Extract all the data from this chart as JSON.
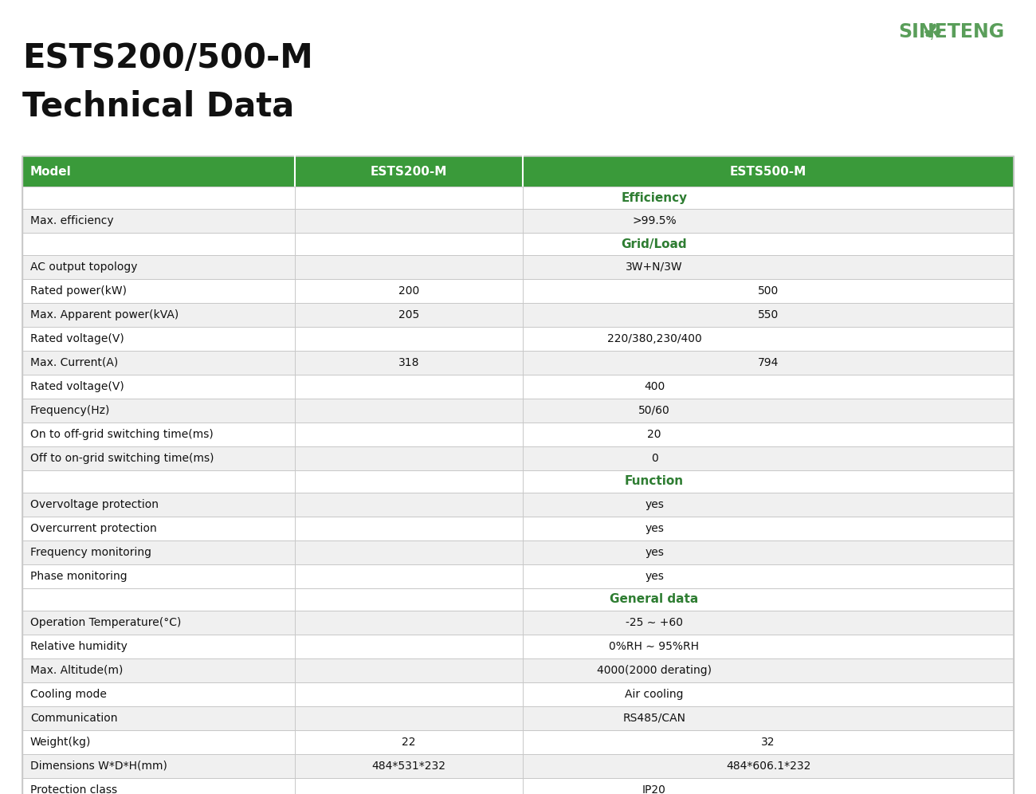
{
  "title_line1": "ESTS200/500-M",
  "title_line2": "Technical Data",
  "header_bg": "#3a9a3a",
  "header_text_color": "#ffffff",
  "section_header_color": "#2e7d32",
  "row_bg_alt": "#f0f0f0",
  "row_bg_white": "#ffffff",
  "border_color": "#c8c8c8",
  "header_row": [
    "Model",
    "ESTS200-M",
    "ESTS500-M"
  ],
  "rows": [
    {
      "type": "section",
      "label": "Efficiency"
    },
    {
      "type": "data",
      "label": "Max. efficiency",
      "col1": "",
      "col2": ">99.5%",
      "span23": true
    },
    {
      "type": "section",
      "label": "Grid/Load"
    },
    {
      "type": "data",
      "label": "AC output topology",
      "col1": "",
      "col2": "3W+N/3W",
      "span23": true
    },
    {
      "type": "data",
      "label": "Rated power(kW)",
      "col1": "200",
      "col2": "500",
      "span23": false
    },
    {
      "type": "data",
      "label": "Max. Apparent power(kVA)",
      "col1": "205",
      "col2": "550",
      "span23": false
    },
    {
      "type": "data",
      "label": "Rated voltage(V)",
      "col1": "",
      "col2": "220/380,230/400",
      "span23": true
    },
    {
      "type": "data",
      "label": "Max. Current(A)",
      "col1": "318",
      "col2": "794",
      "span23": false
    },
    {
      "type": "data",
      "label": "Rated voltage(V)",
      "col1": "",
      "col2": "400",
      "span23": true
    },
    {
      "type": "data",
      "label": "Frequency(Hz)",
      "col1": "",
      "col2": "50/60",
      "span23": true
    },
    {
      "type": "data",
      "label": "On to off-grid switching time(ms)",
      "col1": "",
      "col2": "20",
      "span23": true
    },
    {
      "type": "data",
      "label": "Off to on-grid switching time(ms)",
      "col1": "",
      "col2": "0",
      "span23": true
    },
    {
      "type": "section",
      "label": "Function"
    },
    {
      "type": "data",
      "label": "Overvoltage protection",
      "col1": "",
      "col2": "yes",
      "span23": true
    },
    {
      "type": "data",
      "label": "Overcurrent protection",
      "col1": "",
      "col2": "yes",
      "span23": true
    },
    {
      "type": "data",
      "label": "Frequency monitoring",
      "col1": "",
      "col2": "yes",
      "span23": true
    },
    {
      "type": "data",
      "label": "Phase monitoring",
      "col1": "",
      "col2": "yes",
      "span23": true
    },
    {
      "type": "section",
      "label": "General data"
    },
    {
      "type": "data",
      "label": "Operation Temperature(°C)",
      "col1": "",
      "col2": "-25 ∼ +60",
      "span23": true
    },
    {
      "type": "data",
      "label": "Relative humidity",
      "col1": "",
      "col2": "0%RH ∼ 95%RH",
      "span23": true
    },
    {
      "type": "data",
      "label": "Max. Altitude(m)",
      "col1": "",
      "col2": "4000(2000 derating)",
      "span23": true
    },
    {
      "type": "data",
      "label": "Cooling mode",
      "col1": "",
      "col2": "Air cooling",
      "span23": true
    },
    {
      "type": "data",
      "label": "Communication",
      "col1": "",
      "col2": "RS485/CAN",
      "span23": true
    },
    {
      "type": "data",
      "label": "Weight(kg)",
      "col1": "22",
      "col2": "32",
      "span23": false
    },
    {
      "type": "data",
      "label": "Dimensions W*D*H(mm)",
      "col1": "484*531*232",
      "col2": "484*606.1*232",
      "span23": false
    },
    {
      "type": "data",
      "label": "Protection class",
      "col1": "",
      "col2": "IP20",
      "span23": true
    }
  ],
  "fig_width": 13.0,
  "fig_height": 9.96,
  "dpi": 100
}
